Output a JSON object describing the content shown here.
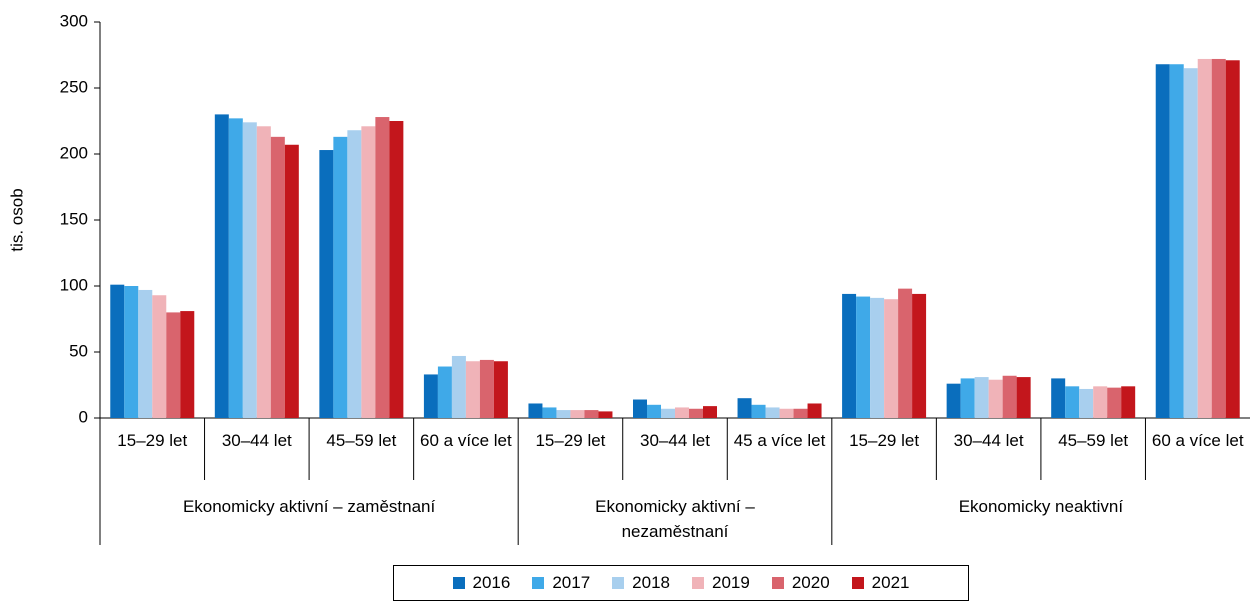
{
  "chart_data": {
    "type": "bar",
    "y_label": "tis. osob",
    "groups": [
      {
        "name": "Ekonomicky aktivní – zaměstnaní",
        "categories": [
          "15–29 let",
          "30–44 let",
          "45–59 let",
          "60 a více let"
        ]
      },
      {
        "name": "Ekonomicky aktivní – nezaměstnaní",
        "categories": [
          "15–29 let",
          "30–44 let",
          "45 a více let"
        ]
      },
      {
        "name": "Ekonomicky neaktivní",
        "categories": [
          "15–29 let",
          "30–44 let",
          "45–59 let",
          "60 a více let"
        ]
      }
    ],
    "series": [
      {
        "name": "2016",
        "color": "#0a6ebd",
        "values": [
          101,
          230,
          203,
          33,
          11,
          14,
          15,
          94,
          26,
          30,
          268
        ]
      },
      {
        "name": "2017",
        "color": "#3fa9e8",
        "values": [
          100,
          227,
          213,
          39,
          8,
          10,
          10,
          92,
          30,
          24,
          268
        ]
      },
      {
        "name": "2018",
        "color": "#a8cfee",
        "values": [
          97,
          224,
          218,
          47,
          6,
          7,
          8,
          91,
          31,
          22,
          265
        ]
      },
      {
        "name": "2019",
        "color": "#f0b3b8",
        "values": [
          93,
          221,
          221,
          43,
          6,
          8,
          7,
          90,
          29,
          24,
          272
        ]
      },
      {
        "name": "2020",
        "color": "#d9646d",
        "values": [
          80,
          213,
          228,
          44,
          6,
          7,
          7,
          98,
          32,
          23,
          272
        ]
      },
      {
        "name": "2021",
        "color": "#c3161c",
        "values": [
          81,
          207,
          225,
          43,
          5,
          9,
          11,
          94,
          31,
          24,
          271
        ]
      }
    ],
    "ylim": [
      0,
      300
    ],
    "yticks": [
      0,
      50,
      100,
      150,
      200,
      250,
      300
    ]
  }
}
